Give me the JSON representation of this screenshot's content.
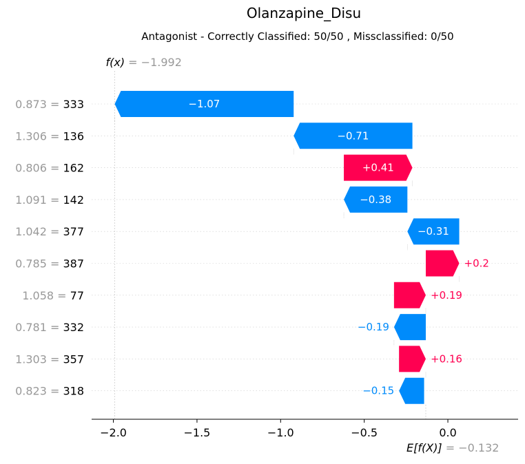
{
  "chart_data": {
    "type": "waterfall",
    "title": "Olanzapine_Disu",
    "subtitle": "Antagonist - Correctly Classified: 50/50 , Missclassified: 0/50",
    "fx": {
      "label": "f(x)",
      "value": -1.992,
      "value_text": "−1.992"
    },
    "ex": {
      "label": "E[f(X)]",
      "value": -0.132,
      "value_text": "−0.132"
    },
    "xlim": [
      -2.13,
      0.42
    ],
    "xticks": [
      {
        "value": -2.0,
        "label": "−2.0"
      },
      {
        "value": -1.5,
        "label": "−1.5"
      },
      {
        "value": -1.0,
        "label": "−1.0"
      },
      {
        "value": -0.5,
        "label": "−0.5"
      },
      {
        "value": 0.0,
        "label": "0.0"
      }
    ],
    "features": [
      {
        "value_text": "0.873",
        "name": "333",
        "start": -0.922,
        "end": -1.992,
        "label": "−1.07"
      },
      {
        "value_text": "1.306",
        "name": "136",
        "start": -0.212,
        "end": -0.922,
        "label": "−0.71"
      },
      {
        "value_text": "0.806",
        "name": "162",
        "start": -0.622,
        "end": -0.212,
        "label": "+0.41"
      },
      {
        "value_text": "1.091",
        "name": "142",
        "start": -0.242,
        "end": -0.622,
        "label": "−0.38"
      },
      {
        "value_text": "1.042",
        "name": "377",
        "start": 0.068,
        "end": -0.242,
        "label": "−0.31"
      },
      {
        "value_text": "0.785",
        "name": "387",
        "start": -0.132,
        "end": 0.068,
        "label": "+0.2"
      },
      {
        "value_text": "1.058",
        "name": "77",
        "start": -0.322,
        "end": -0.132,
        "label": "+0.19"
      },
      {
        "value_text": "0.781",
        "name": "332",
        "start": -0.132,
        "end": -0.322,
        "label": "−0.19"
      },
      {
        "value_text": "1.303",
        "name": "357",
        "start": -0.292,
        "end": -0.132,
        "label": "+0.16"
      },
      {
        "value_text": "0.823",
        "name": "318",
        "start": -0.142,
        "end": -0.292,
        "label": "−0.15"
      }
    ],
    "colors": {
      "positive": "#ff0051",
      "negative": "#008bfb",
      "feature_value": "#999999",
      "text": "#000000",
      "grid": "#cccccc"
    }
  }
}
